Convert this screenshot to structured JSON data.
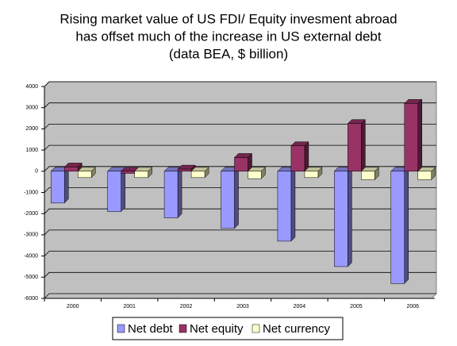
{
  "chart_data": {
    "type": "bar",
    "title": "Rising market value of US FDI/ Equity invesment abroad",
    "subtitle": "has offset much of the increase in US external debt",
    "note": "(data BEA, $ billion)",
    "categories": [
      "2000",
      "2001",
      "2002",
      "2003",
      "2004",
      "2005",
      "2006"
    ],
    "series": [
      {
        "name": "Net debt",
        "color": "#9999ff",
        "values": [
          -1500,
          -1900,
          -2200,
          -2700,
          -3300,
          -4500,
          -5300
        ]
      },
      {
        "name": "Net equity",
        "color": "#993366",
        "values": [
          200,
          -100,
          100,
          650,
          1200,
          2250,
          3200
        ]
      },
      {
        "name": "Net currency",
        "color": "#ffffcc",
        "values": [
          -300,
          -300,
          -300,
          -350,
          -300,
          -400,
          -400
        ]
      }
    ],
    "ylim": [
      -6000,
      4000
    ],
    "yticks": [
      -6000,
      -5000,
      -4000,
      -3000,
      -2000,
      -1000,
      0,
      1000,
      2000,
      3000,
      4000
    ],
    "grid": true,
    "legend": "bottom"
  }
}
